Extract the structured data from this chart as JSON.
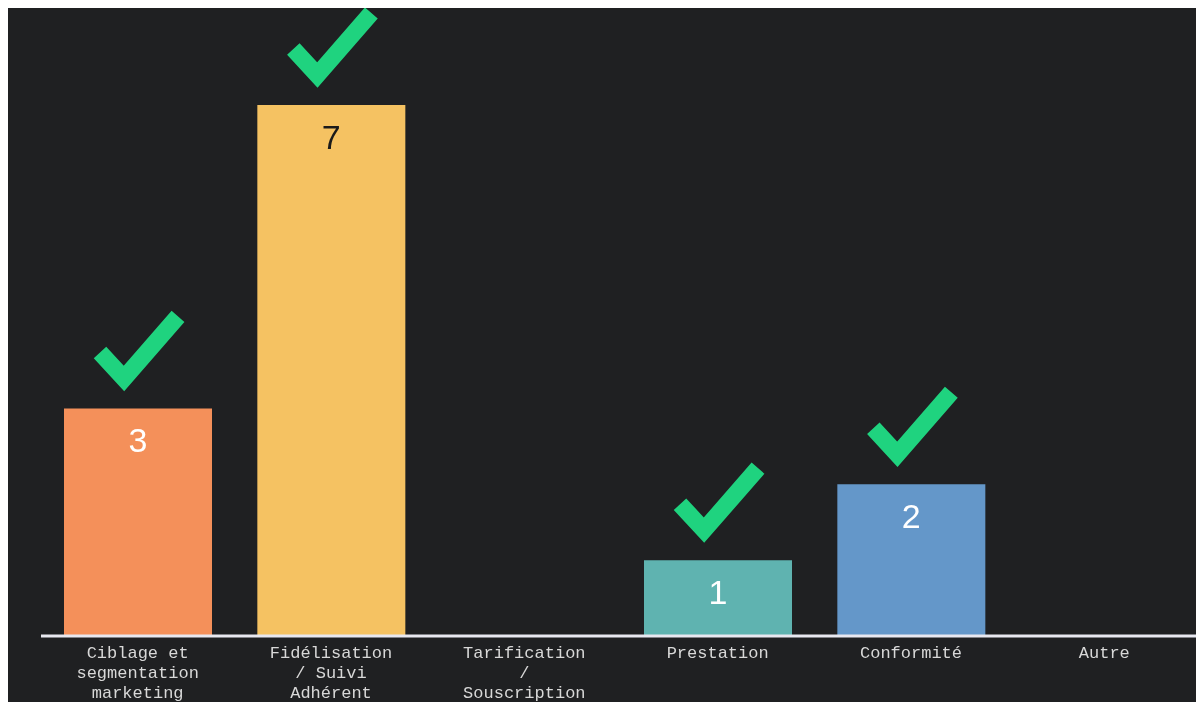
{
  "chart_data": {
    "type": "bar",
    "categories": [
      "Ciblage et segmentation marketing",
      "Fidélisation / Suivi Adhérent",
      "Tarification / Souscription",
      "Prestation",
      "Conformité",
      "Autre"
    ],
    "values": [
      3,
      7,
      0,
      1,
      2,
      0
    ],
    "colors": [
      "#f4905a",
      "#f5c262",
      "#f5c262",
      "#5fb3b0",
      "#6497c9",
      "#6497c9"
    ],
    "value_labels": [
      "3",
      "7",
      null,
      "1",
      "2",
      null
    ]
  }
}
